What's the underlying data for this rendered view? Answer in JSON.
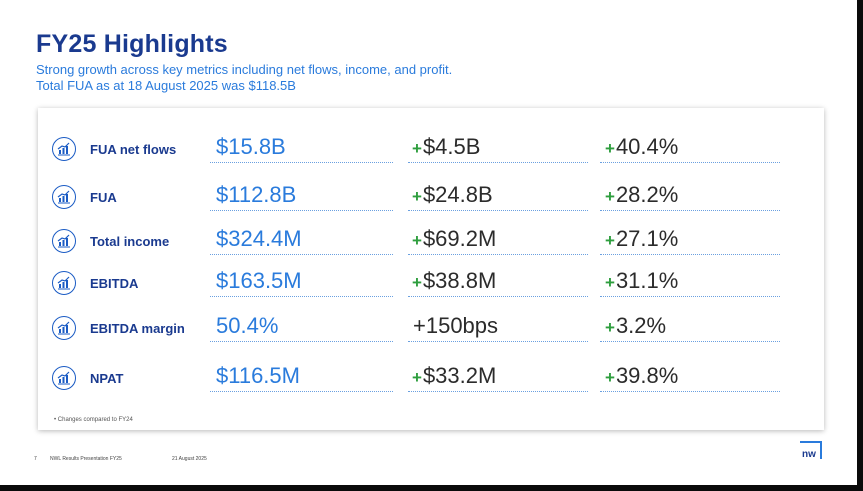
{
  "title": "FY25 Highlights",
  "subtitle_line1": "Strong growth across key metrics including net flows, income, and profit.",
  "subtitle_line2": "Total FUA as at 18 August 2025 was $118.5B",
  "metrics": [
    {
      "label": "FUA net flows",
      "value": "$15.8B",
      "change_sign": "+",
      "change_abs": "$4.5B",
      "change_pct": "40.4%",
      "icon": "growth-chart-icon"
    },
    {
      "label": "FUA",
      "value": "$112.8B",
      "change_sign": "+",
      "change_abs": "$24.8B",
      "change_pct": "28.2%",
      "icon": "growth-chart-icon"
    },
    {
      "label": "Total income",
      "value": "$324.4M",
      "change_sign": "+",
      "change_abs": "$69.2M",
      "change_pct": "27.1%",
      "icon": "growth-chart-icon"
    },
    {
      "label": "EBITDA",
      "value": "$163.5M",
      "change_sign": "+",
      "change_abs": "$38.8M",
      "change_pct": "31.1%",
      "icon": "growth-chart-icon"
    },
    {
      "label": "EBITDA margin",
      "value": "50.4%",
      "change_sign": "",
      "change_abs": "+150bps",
      "change_pct": "3.2%",
      "icon": "growth-chart-icon"
    },
    {
      "label": "NPAT",
      "value": "$116.5M",
      "change_sign": "+",
      "change_abs": "$33.2M",
      "change_pct": "39.8%",
      "icon": "growth-chart-icon"
    }
  ],
  "footnote": "• Changes compared to FY24",
  "footer": {
    "page_number": "7",
    "deck_title": "NWL Results Presentation FY25",
    "date": "21 August 2025"
  },
  "logo_text": "nw",
  "colors": {
    "title": "#1a3a8f",
    "accent": "#2a7bdc",
    "positive": "#2e9e3e"
  }
}
